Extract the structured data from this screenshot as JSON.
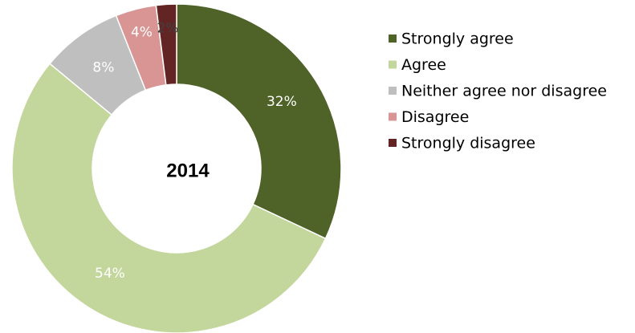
{
  "chart_data": {
    "type": "donut",
    "center_label": "2014",
    "categories": [
      "Strongly agree",
      "Agree",
      "Neither agree nor disagree",
      "Disagree",
      "Strongly disagree"
    ],
    "values": [
      32,
      54,
      8,
      4,
      2
    ],
    "value_labels": [
      "32%",
      "54%",
      "8%",
      "4%",
      "2%"
    ],
    "colors": [
      "#4f6228",
      "#c3d69b",
      "#bfbfbf",
      "#d99594",
      "#632523"
    ],
    "legend": "right"
  }
}
